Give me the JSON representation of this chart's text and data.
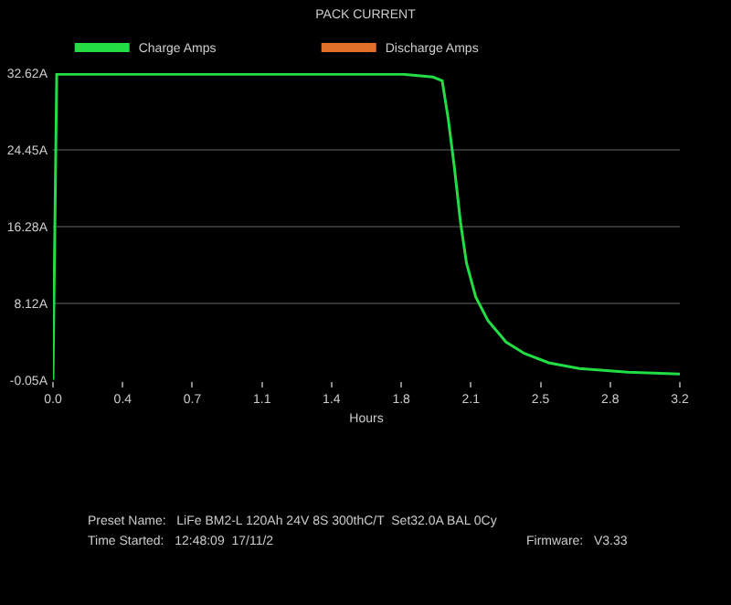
{
  "chart_data": {
    "type": "line",
    "title": "PACK CURRENT",
    "xlabel": "Hours",
    "xlim": [
      0,
      3.2
    ],
    "xticks": [
      {
        "value": 0,
        "label": "0.0"
      },
      {
        "value": 0.356,
        "label": "0.4"
      },
      {
        "value": 0.711,
        "label": "0.7"
      },
      {
        "value": 1.067,
        "label": "1.1"
      },
      {
        "value": 1.422,
        "label": "1.4"
      },
      {
        "value": 1.778,
        "label": "1.8"
      },
      {
        "value": 2.133,
        "label": "2.1"
      },
      {
        "value": 2.489,
        "label": "2.5"
      },
      {
        "value": 2.844,
        "label": "2.8"
      },
      {
        "value": 3.2,
        "label": "3.2"
      }
    ],
    "ylim": [
      -0.05,
      32.62
    ],
    "yticks": [
      {
        "value": -0.05,
        "label": "-0.05A"
      },
      {
        "value": 8.12,
        "label": "8.12A"
      },
      {
        "value": 16.28,
        "label": "16.28A"
      },
      {
        "value": 24.45,
        "label": "24.45A"
      },
      {
        "value": 32.62,
        "label": "32.62A"
      }
    ],
    "grid": "y",
    "legend": "top left",
    "marker": "none",
    "line_style": "solid",
    "series": [
      {
        "name": "Charge Amps",
        "color": "#22dd44",
        "x": [
          0,
          0.019,
          1.6,
          1.785,
          1.94,
          1.987,
          2.018,
          2.049,
          2.08,
          2.111,
          2.158,
          2.22,
          2.313,
          2.406,
          2.531,
          2.687,
          2.935,
          3.2
        ],
        "values": [
          0,
          32.5,
          32.5,
          32.5,
          32.2,
          31.8,
          27.7,
          22.6,
          16.8,
          12.4,
          8.8,
          6.3,
          4.0,
          2.8,
          1.8,
          1.2,
          0.8,
          0.6
        ]
      },
      {
        "name": "Discharge Amps",
        "color": "#e0702a"
      }
    ],
    "annotations": [
      "Preset Name:   LiFe BM2-L 120Ah 24V 8S 300thC/T  Set32.0A BAL 0Cy",
      "Time Started:   12:48:09  17/11/2",
      "Firmware:   V3.33"
    ]
  }
}
